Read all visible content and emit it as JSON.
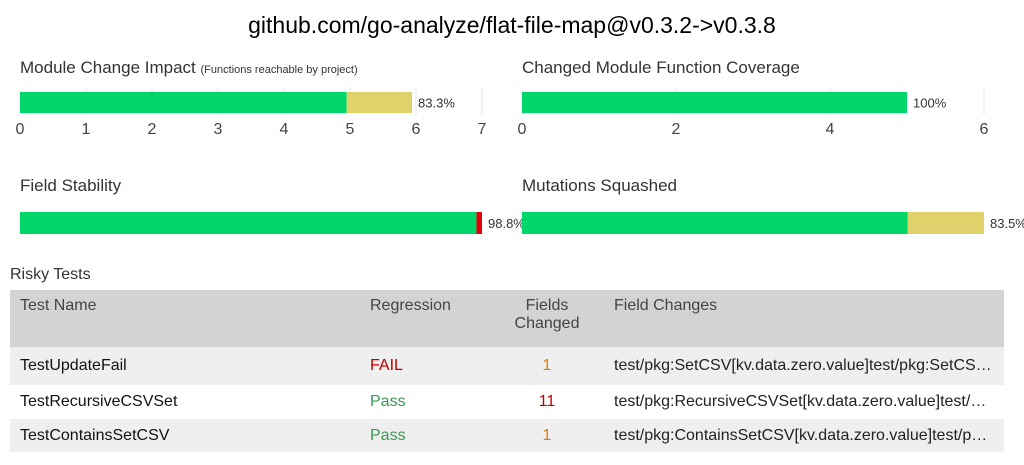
{
  "page": {
    "title": "github.com/go-analyze/flat-file-map@v0.3.2->v0.3.8"
  },
  "colors": {
    "green": "#00d768",
    "yellow": "#dfd26a",
    "red": "#e3000b",
    "grid": "#e6e6e6",
    "axis_text": "#444444"
  },
  "chart_data": [
    {
      "type": "bar",
      "title": "Module Change Impact",
      "subtitle": "(Functions reachable by project)",
      "orientation": "horizontal-stacked",
      "segments": [
        {
          "value": 4.95,
          "color": "green"
        },
        {
          "value": 0.99,
          "color": "yellow"
        }
      ],
      "xlim": [
        0,
        7
      ],
      "ticks": [
        "0",
        "1",
        "2",
        "3",
        "4",
        "5",
        "6",
        "7"
      ],
      "data_label": "83.3%",
      "grid": true
    },
    {
      "type": "bar",
      "title": "Changed Module Function Coverage",
      "subtitle": "",
      "orientation": "horizontal-stacked",
      "segments": [
        {
          "value": 5.0,
          "color": "green"
        }
      ],
      "xlim": [
        0,
        6
      ],
      "ticks": [
        "0",
        "2",
        "4",
        "6"
      ],
      "data_label": "100%",
      "grid": true
    },
    {
      "type": "bar",
      "title": "Field Stability",
      "subtitle": "",
      "orientation": "horizontal-stacked",
      "segments": [
        {
          "value": 98.8,
          "color": "green"
        },
        {
          "value": 1.2,
          "color": "red"
        }
      ],
      "xlim": [
        0,
        100
      ],
      "ticks": [],
      "data_label": "98.8%",
      "grid": false
    },
    {
      "type": "bar",
      "title": "Mutations Squashed",
      "subtitle": "",
      "orientation": "horizontal-stacked",
      "segments": [
        {
          "value": 83.5,
          "color": "green"
        },
        {
          "value": 16.5,
          "color": "yellow"
        }
      ],
      "xlim": [
        0,
        100
      ],
      "ticks": [],
      "data_label": "83.5%",
      "grid": false
    }
  ],
  "risky_tests": {
    "title": "Risky Tests",
    "headers": {
      "name": "Test Name",
      "regression": "Regression",
      "fields_line1": "Fields",
      "fields_line2": "Changed",
      "changes": "Field Changes"
    },
    "rows": [
      {
        "name": "TestUpdateFail",
        "regression": "FAIL",
        "fields": "1",
        "changes": "test/pkg:SetCSV[kv.data.zero.value]test/pkg:SetCSV[kv.data.zero..."
      },
      {
        "name": "TestRecursiveCSVSet",
        "regression": "Pass",
        "fields": "11",
        "changes": "test/pkg:RecursiveCSVSet[kv.data.zero.value]test/pkg:RecursiveCS.."
      },
      {
        "name": "TestContainsSetCSV",
        "regression": "Pass",
        "fields": "1",
        "changes": "test/pkg:ContainsSetCSV[kv.data.zero.value]test/pkg:ContainsSetC.."
      }
    ]
  }
}
